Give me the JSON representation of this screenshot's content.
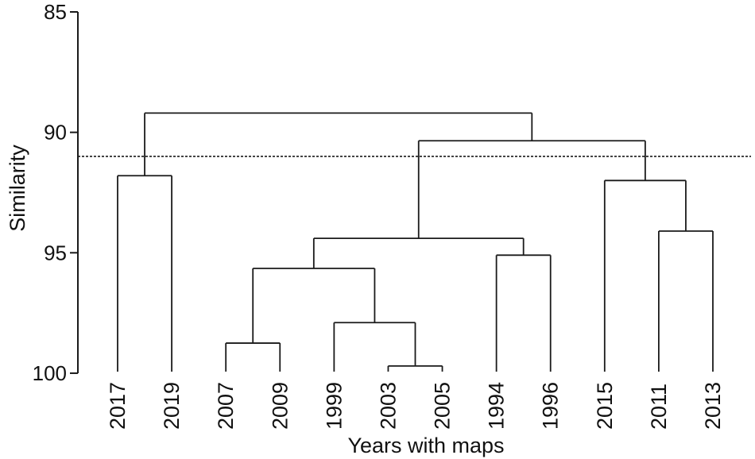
{
  "figure": {
    "background": "#ffffff",
    "line_color": "#1a1a1a"
  },
  "chart_data": {
    "type": "dendrogram",
    "orientation": "root-top",
    "title": "",
    "xlabel": "Years with maps",
    "ylabel": "Similarity",
    "yticks": [
      85,
      90,
      95,
      100
    ],
    "ylim": [
      85,
      100
    ],
    "y_axis_reversed_note": "85 at top, 100 at bottom; leaves terminate at similarity 100",
    "grid": false,
    "threshold_line": {
      "similarity": 91,
      "style": "dotted"
    },
    "leaves": [
      "2017",
      "2019",
      "2007",
      "2009",
      "1999",
      "2003",
      "2005",
      "1994",
      "1996",
      "2015",
      "2011",
      "2013"
    ],
    "leaf_similarity": 100,
    "tree": {
      "sim": 89.2,
      "children": [
        {
          "sim": 91.8,
          "children": [
            {
              "leaf": "2017"
            },
            {
              "leaf": "2019"
            }
          ]
        },
        {
          "sim": 90.35,
          "children": [
            {
              "sim": 94.4,
              "children": [
                {
                  "sim": 95.65,
                  "children": [
                    {
                      "sim": 98.75,
                      "children": [
                        {
                          "leaf": "2007"
                        },
                        {
                          "leaf": "2009"
                        }
                      ]
                    },
                    {
                      "sim": 97.9,
                      "children": [
                        {
                          "leaf": "1999"
                        },
                        {
                          "sim": 99.7,
                          "children": [
                            {
                              "leaf": "2003"
                            },
                            {
                              "leaf": "2005"
                            }
                          ]
                        }
                      ]
                    }
                  ]
                },
                {
                  "sim": 95.1,
                  "children": [
                    {
                      "leaf": "1994"
                    },
                    {
                      "leaf": "1996"
                    }
                  ]
                }
              ]
            },
            {
              "sim": 92.0,
              "children": [
                {
                  "leaf": "2015"
                },
                {
                  "sim": 94.1,
                  "children": [
                    {
                      "leaf": "2011"
                    },
                    {
                      "leaf": "2013"
                    }
                  ]
                }
              ]
            }
          ]
        }
      ]
    },
    "merges_readable": [
      {
        "cluster": "2017 + 2019",
        "similarity": 91.8
      },
      {
        "cluster": "2007 + 2009",
        "similarity": 98.75
      },
      {
        "cluster": "2003 + 2005",
        "similarity": 99.7
      },
      {
        "cluster": "1999 + (2003,2005)",
        "similarity": 97.9
      },
      {
        "cluster": "(2007,2009) + (1999,2003,2005)",
        "similarity": 95.65
      },
      {
        "cluster": "1994 + 1996",
        "similarity": 95.1
      },
      {
        "cluster": "(2007..2005) + (1994,1996)",
        "similarity": 94.4
      },
      {
        "cluster": "2011 + 2013",
        "similarity": 94.1
      },
      {
        "cluster": "2015 + (2011,2013)",
        "similarity": 92.0
      },
      {
        "cluster": "(middle group) + (2015,2011,2013)",
        "similarity": 90.35
      },
      {
        "cluster": "root: (2017,2019) + rest",
        "similarity": 89.2
      }
    ]
  }
}
